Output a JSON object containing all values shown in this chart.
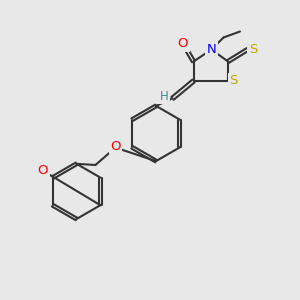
{
  "bg_color": "#e8e8e8",
  "bond_color": "#333333",
  "bond_lw": 1.5,
  "dbo": 0.06,
  "atom_colors": {
    "O": "#ff0000",
    "N": "#0000ff",
    "S": "#bbaa00",
    "H": "#3a8a8a"
  },
  "fs": 8.5
}
